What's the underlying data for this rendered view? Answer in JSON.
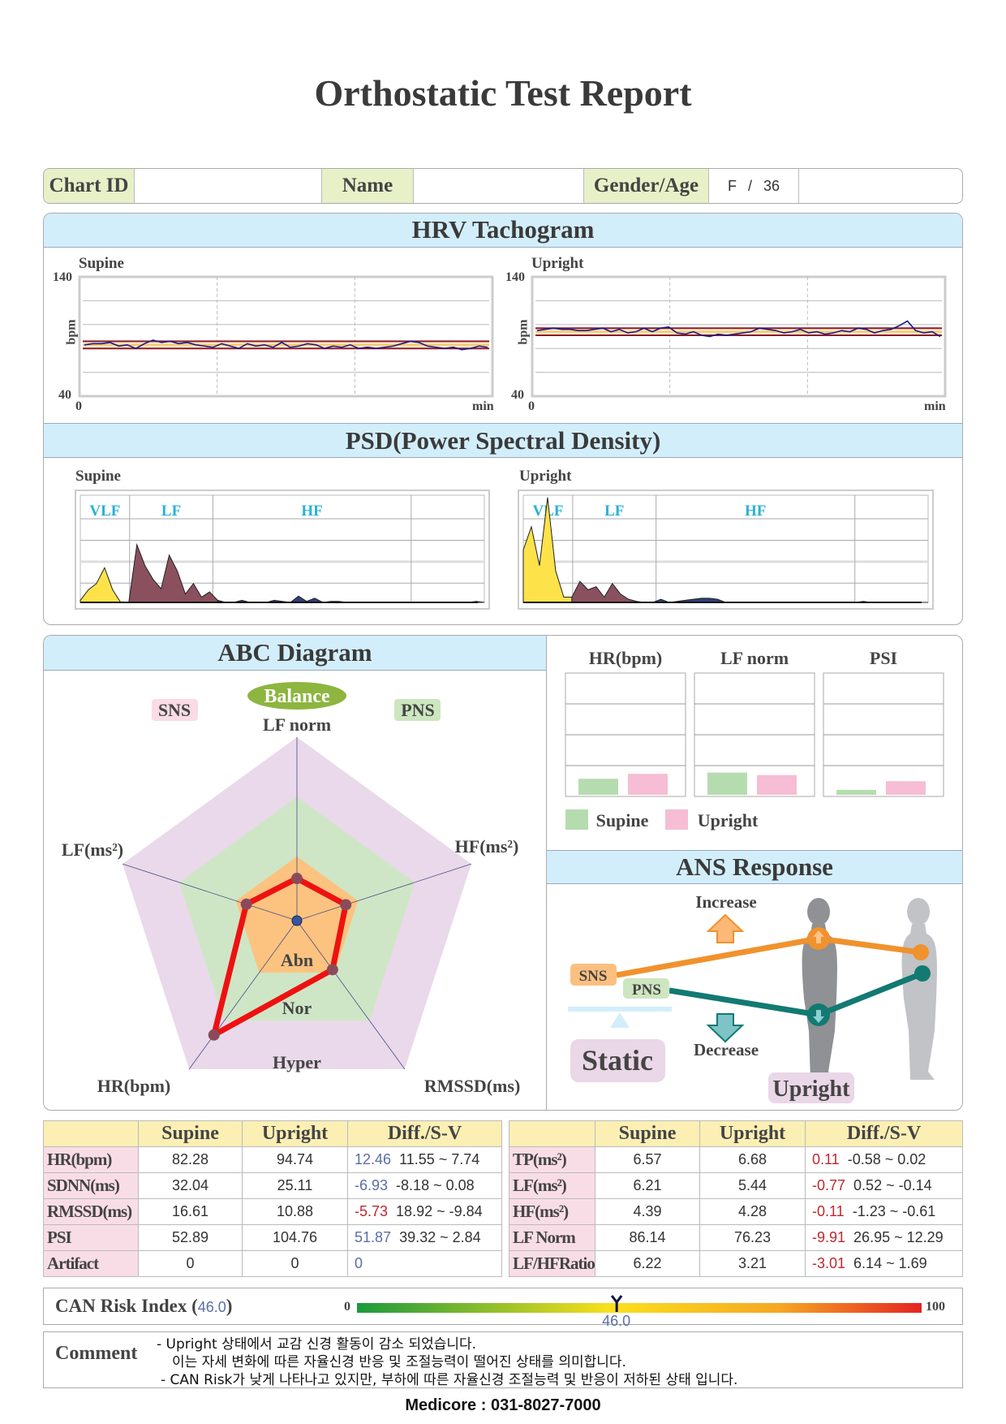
{
  "title": "Orthostatic Test Report",
  "info": {
    "chart_id_label": "Chart ID",
    "chart_id": "",
    "name_label": "Name",
    "name": "",
    "gender_age_label": "Gender/Age",
    "gender": "F",
    "separator": "/",
    "age": "36"
  },
  "tachogram": {
    "title": "HRV Tachogram",
    "ylabel": "bpm",
    "ymax": "140",
    "ymin": "40",
    "x0": "0",
    "xunit": "min",
    "supine": {
      "label": "Supine",
      "mean_band": [
        80,
        86
      ],
      "values": [
        83,
        84,
        84,
        85,
        82,
        83,
        80,
        84,
        87,
        85,
        86,
        84,
        85,
        83,
        82,
        81,
        84,
        82,
        80,
        84,
        82,
        83,
        81,
        85,
        81,
        82,
        84,
        83,
        80,
        82,
        81,
        83,
        80,
        81,
        80,
        81,
        82,
        84,
        86,
        85,
        82,
        81,
        80,
        81,
        79,
        80,
        82,
        81
      ]
    },
    "upright": {
      "label": "Upright",
      "mean_band": [
        91,
        97
      ],
      "values": [
        95,
        96,
        97,
        96,
        96,
        95,
        95,
        96,
        97,
        94,
        96,
        93,
        94,
        97,
        94,
        97,
        98,
        93,
        92,
        94,
        91,
        90,
        92,
        91,
        92,
        93,
        94,
        97,
        96,
        95,
        93,
        94,
        96,
        93,
        94,
        92,
        93,
        95,
        94,
        97,
        96,
        93,
        95,
        96,
        99,
        103,
        95,
        93,
        94,
        90
      ]
    }
  },
  "psd": {
    "title": "PSD(Power Spectral Density)",
    "bands": [
      "VLF",
      "LF",
      "HF"
    ],
    "supine": {
      "label": "Supine",
      "vlf": [
        0.02,
        0.12,
        0.18,
        0.33,
        0.12,
        0.0
      ],
      "lf": [
        0.0,
        0.55,
        0.35,
        0.22,
        0.13,
        0.45,
        0.3,
        0.08,
        0.18,
        0.05,
        0.1
      ],
      "hf": [
        0.02,
        0.0,
        0.0,
        0.02,
        0.0,
        0.0,
        0.0,
        0.02,
        0.01,
        0.0,
        0.06,
        0.01,
        0.04,
        0.0,
        0.01,
        0.01,
        0,
        0,
        0,
        0,
        0,
        0,
        0,
        0,
        0,
        0,
        0,
        0,
        0,
        0,
        0,
        0,
        0.01,
        0
      ]
    },
    "upright": {
      "label": "Upright",
      "vlf": [
        0.5,
        0.72,
        0.35,
        1.0,
        0.3,
        0.05
      ],
      "lf": [
        0.05,
        0.2,
        0.12,
        0.15,
        0.05,
        0.18,
        0.08,
        0.03,
        0.01,
        0.0
      ],
      "hf": [
        0.0,
        0.03,
        0.0,
        0.01,
        0.02,
        0.03,
        0.04,
        0.04,
        0.03,
        0.0,
        0,
        0,
        0,
        0,
        0,
        0,
        0,
        0,
        0,
        0,
        0,
        0,
        0,
        0,
        0,
        0,
        0.01,
        0,
        0,
        0,
        0,
        0,
        0,
        0,
        0
      ]
    }
  },
  "abc": {
    "title": "ABC Diagram",
    "balance": "Balance",
    "sns": "SNS",
    "pns": "PNS",
    "axes": [
      "LF norm",
      "HF(ms²)",
      "RMSSD(ms)",
      "HR(bpm)",
      "LF(ms²)"
    ],
    "values": [
      0.23,
      0.28,
      0.33,
      0.77,
      0.29
    ],
    "zones": [
      "Abn",
      "Nor",
      "Hyper"
    ],
    "colors": {
      "hyper": "#e9d9ea",
      "nor": "#cfe6c6",
      "abn": "#fbc37f",
      "line": "#ee1111",
      "point": "#8b4a5a"
    }
  },
  "bars": {
    "charts": [
      {
        "title": "HR(bpm)",
        "supine": 0.13,
        "upright": 0.17
      },
      {
        "title": "LF norm",
        "supine": 0.18,
        "upright": 0.16
      },
      {
        "title": "PSI",
        "supine": 0.04,
        "upright": 0.11
      }
    ],
    "legend": {
      "supine": "Supine",
      "upright": "Upright"
    },
    "colors": {
      "supine": "#b5dcaf",
      "upright": "#f6bdd4"
    }
  },
  "ans": {
    "title": "ANS Response",
    "increase": "Increase",
    "decrease": "Decrease",
    "sns": "SNS",
    "pns": "PNS",
    "static": "Static",
    "upright": "Upright"
  },
  "table_left": {
    "headers": [
      "",
      "Supine",
      "Upright",
      "Diff./S-V"
    ],
    "rows": [
      {
        "label": "HR(bpm)",
        "supine": "82.28",
        "upright": "94.74",
        "diff": "12.46",
        "range": "11.55 ~ 7.74",
        "diff_color": "blue"
      },
      {
        "label": "SDNN(ms)",
        "supine": "32.04",
        "upright": "25.11",
        "diff": "-6.93",
        "range": "-8.18 ~ 0.08",
        "diff_color": "blue"
      },
      {
        "label": "RMSSD(ms)",
        "supine": "16.61",
        "upright": "10.88",
        "diff": "-5.73",
        "range": "18.92 ~ -9.84",
        "diff_color": "red"
      },
      {
        "label": "PSI",
        "supine": "52.89",
        "upright": "104.76",
        "diff": "51.87",
        "range": "39.32 ~ 2.84",
        "diff_color": "blue"
      },
      {
        "label": "Artifact",
        "supine": "0",
        "upright": "0",
        "diff": "0",
        "range": "",
        "diff_color": "blue"
      }
    ]
  },
  "table_right": {
    "headers": [
      "",
      "Supine",
      "Upright",
      "Diff./S-V"
    ],
    "rows": [
      {
        "label": "TP(ms²)",
        "supine": "6.57",
        "upright": "6.68",
        "diff": "0.11",
        "range": "-0.58 ~ 0.02",
        "diff_color": "red"
      },
      {
        "label": "LF(ms²)",
        "supine": "6.21",
        "upright": "5.44",
        "diff": "-0.77",
        "range": "0.52 ~ -0.14",
        "diff_color": "red"
      },
      {
        "label": "HF(ms²)",
        "supine": "4.39",
        "upright": "4.28",
        "diff": "-0.11",
        "range": "-1.23 ~ -0.61",
        "diff_color": "red"
      },
      {
        "label": "LF Norm",
        "supine": "86.14",
        "upright": "76.23",
        "diff": "-9.91",
        "range": "26.95 ~ 12.29",
        "diff_color": "red"
      },
      {
        "label": "LF/HFRatio",
        "supine": "6.22",
        "upright": "3.21",
        "diff": "-3.01",
        "range": "6.14 ~ 1.69",
        "diff_color": "red"
      }
    ]
  },
  "can": {
    "label": "CAN Risk Index",
    "value": "46.0",
    "value_num": 46.0,
    "min": "0",
    "max": "100"
  },
  "comment": {
    "label": "Comment",
    "lines": [
      "- Upright 상태에서 교감 신경 활동이 감소 되었습니다.",
      "이는 자세 변화에 따른 자율신경 반응 및 조절능력이 떨어진 상태를 의미합니다.",
      "- CAN Risk가 낮게 나타나고 있지만, 부하에 따른 자율신경 조절능력 및 반응이 저하된 상태 입니다."
    ]
  },
  "footer": "Medicore : 031-8027-7000"
}
